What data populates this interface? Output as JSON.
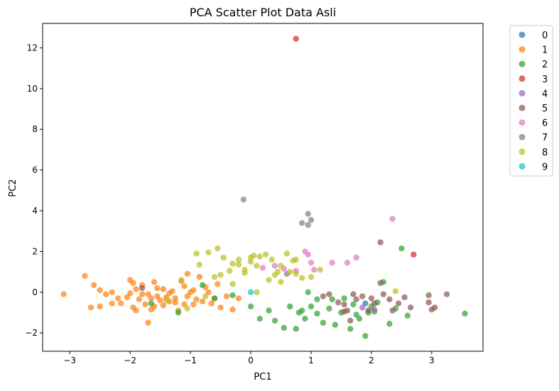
{
  "chart_data": {
    "type": "scatter",
    "title": "PCA Scatter Plot Data Asli",
    "xlabel": "PC1",
    "ylabel": "PC2",
    "xlim": [
      -3.45,
      3.85
    ],
    "ylim": [
      -2.9,
      13.2
    ],
    "xticks": [
      -3,
      -2,
      -1,
      0,
      1,
      2,
      3
    ],
    "yticks": [
      -2,
      0,
      2,
      4,
      6,
      8,
      10,
      12
    ],
    "grid": false,
    "legend_placement": "outside-right",
    "marker_alpha": 0.7,
    "series": [
      {
        "name": "0",
        "color": "#1f77b4",
        "points": [
          [
            1.9,
            -0.55
          ]
        ]
      },
      {
        "name": "1",
        "color": "#ff7f0e",
        "points": [
          [
            -3.1,
            -0.1
          ],
          [
            -2.75,
            0.8
          ],
          [
            -2.6,
            0.35
          ],
          [
            -2.5,
            -0.7
          ],
          [
            -2.4,
            -0.1
          ],
          [
            -2.3,
            0.0
          ],
          [
            -2.2,
            -0.3
          ],
          [
            -2.15,
            -0.55
          ],
          [
            -2.05,
            -0.25
          ],
          [
            -1.95,
            -0.75
          ],
          [
            -1.9,
            0.15
          ],
          [
            -1.85,
            -0.35
          ],
          [
            -1.8,
            0.35
          ],
          [
            -1.75,
            -0.6
          ],
          [
            -1.7,
            -0.1
          ],
          [
            -1.65,
            -0.85
          ],
          [
            -1.6,
            0.5
          ],
          [
            -1.55,
            0.2
          ],
          [
            -1.5,
            -0.4
          ],
          [
            -1.45,
            -0.65
          ],
          [
            -1.4,
            -0.25
          ],
          [
            -1.3,
            0.05
          ],
          [
            -1.25,
            -0.5
          ],
          [
            -1.2,
            -0.9
          ],
          [
            -1.15,
            0.55
          ],
          [
            -1.1,
            0.3
          ],
          [
            -1.05,
            -0.2
          ],
          [
            -1.0,
            0.0
          ],
          [
            -0.95,
            -0.6
          ],
          [
            -0.9,
            -0.35
          ],
          [
            -0.85,
            0.75
          ],
          [
            -0.8,
            -0.45
          ],
          [
            -0.7,
            0.0
          ],
          [
            -0.6,
            -0.3
          ],
          [
            -0.5,
            -0.75
          ],
          [
            -0.3,
            -0.85
          ],
          [
            -0.2,
            -0.3
          ],
          [
            -1.7,
            -1.5
          ],
          [
            -2.0,
            0.6
          ],
          [
            -1.9,
            -0.9
          ],
          [
            -2.5,
            0.1
          ],
          [
            -1.35,
            -0.05
          ],
          [
            -1.55,
            -0.2
          ],
          [
            -1.8,
            -0.1
          ],
          [
            -1.45,
            0.15
          ],
          [
            -1.6,
            -0.7
          ],
          [
            -0.75,
            0.25
          ],
          [
            -1.05,
            0.9
          ],
          [
            -0.55,
            0.4
          ],
          [
            -0.65,
            -0.55
          ],
          [
            -1.25,
            -0.3
          ],
          [
            -2.3,
            -0.55
          ],
          [
            -2.65,
            -0.75
          ],
          [
            -2.0,
            -0.05
          ],
          [
            -1.95,
            0.45
          ],
          [
            -1.65,
            -0.3
          ],
          [
            -1.1,
            -0.6
          ],
          [
            -0.95,
            0.1
          ],
          [
            -0.4,
            -0.2
          ],
          [
            -1.35,
            -0.45
          ]
        ]
      },
      {
        "name": "2",
        "color": "#2ca02c",
        "points": [
          [
            -1.2,
            -1.0
          ],
          [
            -0.8,
            0.35
          ],
          [
            -0.6,
            -0.3
          ],
          [
            -0.3,
            -0.15
          ],
          [
            0.0,
            -0.7
          ],
          [
            0.15,
            -1.3
          ],
          [
            0.4,
            -1.4
          ],
          [
            0.55,
            -1.75
          ],
          [
            0.65,
            -0.7
          ],
          [
            0.75,
            -1.8
          ],
          [
            0.8,
            -1.0
          ],
          [
            0.9,
            -1.3
          ],
          [
            0.95,
            0.0
          ],
          [
            1.0,
            -0.7
          ],
          [
            1.1,
            -1.05
          ],
          [
            1.2,
            -1.5
          ],
          [
            1.3,
            -0.8
          ],
          [
            1.4,
            -1.6
          ],
          [
            1.5,
            -1.0
          ],
          [
            1.55,
            -0.3
          ],
          [
            1.65,
            -1.8
          ],
          [
            1.7,
            -0.6
          ],
          [
            1.8,
            -1.3
          ],
          [
            1.9,
            -2.15
          ],
          [
            1.95,
            -1.0
          ],
          [
            2.0,
            -0.7
          ],
          [
            2.1,
            -0.5
          ],
          [
            2.2,
            0.5
          ],
          [
            2.3,
            -1.55
          ],
          [
            2.4,
            -0.8
          ],
          [
            2.5,
            2.15
          ],
          [
            2.6,
            -1.15
          ],
          [
            3.55,
            -1.05
          ],
          [
            -1.65,
            -0.55
          ],
          [
            0.3,
            -0.9
          ],
          [
            1.1,
            -0.35
          ],
          [
            1.35,
            -0.35
          ],
          [
            1.75,
            -1.1
          ],
          [
            2.05,
            -0.95
          ],
          [
            0.85,
            -0.9
          ]
        ]
      },
      {
        "name": "3",
        "color": "#d62728",
        "points": [
          [
            0.75,
            12.45
          ],
          [
            2.7,
            1.85
          ]
        ]
      },
      {
        "name": "4",
        "color": "#9467bd",
        "points": [
          [
            1.85,
            -0.75
          ],
          [
            2.05,
            -0.85
          ]
        ]
      },
      {
        "name": "5",
        "color": "#8c564b",
        "points": [
          [
            -1.8,
            0.2
          ],
          [
            1.2,
            -0.2
          ],
          [
            1.3,
            -0.1
          ],
          [
            1.45,
            -0.5
          ],
          [
            1.55,
            -0.6
          ],
          [
            1.6,
            -0.9
          ],
          [
            1.7,
            -0.1
          ],
          [
            1.75,
            -0.35
          ],
          [
            1.85,
            -0.2
          ],
          [
            1.95,
            -0.9
          ],
          [
            2.0,
            -0.3
          ],
          [
            2.05,
            -0.55
          ],
          [
            2.15,
            2.45
          ],
          [
            2.2,
            -0.1
          ],
          [
            2.3,
            -0.35
          ],
          [
            2.35,
            -0.9
          ],
          [
            2.45,
            -0.55
          ],
          [
            2.55,
            -0.25
          ],
          [
            2.65,
            -0.75
          ],
          [
            2.95,
            -0.5
          ],
          [
            3.0,
            -0.85
          ],
          [
            3.05,
            -0.75
          ],
          [
            3.25,
            -0.1
          ],
          [
            1.65,
            -1.4
          ],
          [
            2.15,
            0.45
          ],
          [
            1.55,
            -0.95
          ],
          [
            2.95,
            -0.15
          ]
        ]
      },
      {
        "name": "6",
        "color": "#e377c2",
        "points": [
          [
            0.9,
            2.0
          ],
          [
            0.95,
            1.85
          ],
          [
            1.0,
            1.45
          ],
          [
            1.05,
            1.1
          ],
          [
            1.35,
            1.45
          ],
          [
            1.6,
            1.45
          ],
          [
            1.75,
            1.7
          ],
          [
            2.35,
            3.6
          ],
          [
            0.55,
            1.15
          ],
          [
            0.4,
            1.3
          ],
          [
            0.75,
            1.05
          ],
          [
            0.2,
            1.2
          ]
        ]
      },
      {
        "name": "7",
        "color": "#7f7f7f",
        "points": [
          [
            -0.12,
            4.55
          ],
          [
            0.85,
            3.4
          ],
          [
            0.95,
            3.85
          ],
          [
            0.95,
            3.3
          ],
          [
            1.0,
            3.55
          ],
          [
            0.6,
            0.9
          ]
        ]
      },
      {
        "name": "8",
        "color": "#bcbd22",
        "points": [
          [
            -0.9,
            1.9
          ],
          [
            -0.7,
            1.95
          ],
          [
            -0.55,
            2.15
          ],
          [
            -0.45,
            1.7
          ],
          [
            -0.3,
            1.4
          ],
          [
            -0.2,
            1.6
          ],
          [
            -0.1,
            1.1
          ],
          [
            0.0,
            1.5
          ],
          [
            0.05,
            1.8
          ],
          [
            0.1,
            1.3
          ],
          [
            0.25,
            1.85
          ],
          [
            0.35,
            1.6
          ],
          [
            0.45,
            1.0
          ],
          [
            0.5,
            1.3
          ],
          [
            0.6,
            1.9
          ],
          [
            0.7,
            1.55
          ],
          [
            0.75,
            0.9
          ],
          [
            0.85,
            0.7
          ],
          [
            -0.5,
            0.85
          ],
          [
            -0.3,
            0.4
          ],
          [
            -0.1,
            0.95
          ],
          [
            0.1,
            0.0
          ],
          [
            0.3,
            0.6
          ],
          [
            0.5,
            0.5
          ],
          [
            0.65,
            1.0
          ],
          [
            1.0,
            0.75
          ],
          [
            1.15,
            1.1
          ],
          [
            2.4,
            0.05
          ],
          [
            -1.05,
            -0.8
          ],
          [
            -1.15,
            0.6
          ],
          [
            -0.75,
            -0.2
          ],
          [
            -1.4,
            -0.4
          ],
          [
            -0.2,
            1.35
          ],
          [
            0.15,
            1.75
          ],
          [
            -0.35,
            1.05
          ],
          [
            0.4,
            0.85
          ],
          [
            0.75,
            1.6
          ],
          [
            -0.85,
            1.35
          ],
          [
            0.0,
            1.7
          ],
          [
            -0.6,
            0.75
          ]
        ]
      },
      {
        "name": "9",
        "color": "#17becf",
        "points": [
          [
            0.0,
            0.0
          ]
        ]
      }
    ]
  }
}
